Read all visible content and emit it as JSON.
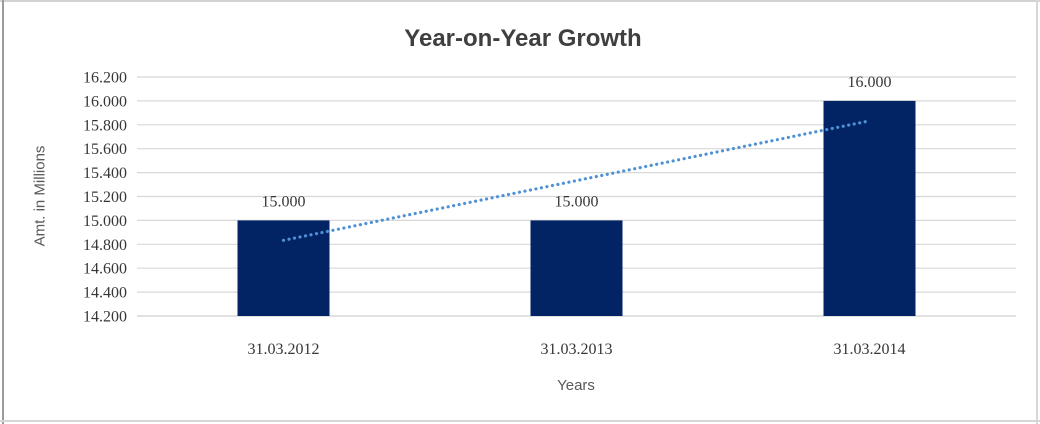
{
  "chart_data": {
    "type": "bar",
    "title": "Year-on-Year Growth",
    "xlabel": "Years",
    "ylabel": "Amt. in Millions",
    "categories": [
      "31.03.2012",
      "31.03.2013",
      "31.03.2014"
    ],
    "values": [
      15000,
      15000,
      16000
    ],
    "value_labels": [
      "15.000",
      "15.000",
      "16.000"
    ],
    "ylim": [
      14200,
      16200
    ],
    "grid": true,
    "legend": "none",
    "y_ticks": [
      {
        "value": 16200,
        "label": "16.200"
      },
      {
        "value": 16000,
        "label": "16.000"
      },
      {
        "value": 15800,
        "label": "15.800"
      },
      {
        "value": 15600,
        "label": "15.600"
      },
      {
        "value": 15400,
        "label": "15.400"
      },
      {
        "value": 15200,
        "label": "15.200"
      },
      {
        "value": 15000,
        "label": "15.000"
      },
      {
        "value": 14800,
        "label": "14.800"
      },
      {
        "value": 14600,
        "label": "14.600"
      },
      {
        "value": 14400,
        "label": "14.400"
      },
      {
        "value": 14200,
        "label": "14.200"
      }
    ],
    "trendline": {
      "style": "dotted",
      "color": "#4f91d5",
      "start_value": 14833,
      "end_value": 15833
    },
    "colors": {
      "bar": "#022364",
      "gridline": "#d8d8d8",
      "axis_line": "#cfcfcf",
      "title_text": "#3f3f3f",
      "tick_text": "#363636",
      "axis_title_text": "#595959"
    }
  }
}
